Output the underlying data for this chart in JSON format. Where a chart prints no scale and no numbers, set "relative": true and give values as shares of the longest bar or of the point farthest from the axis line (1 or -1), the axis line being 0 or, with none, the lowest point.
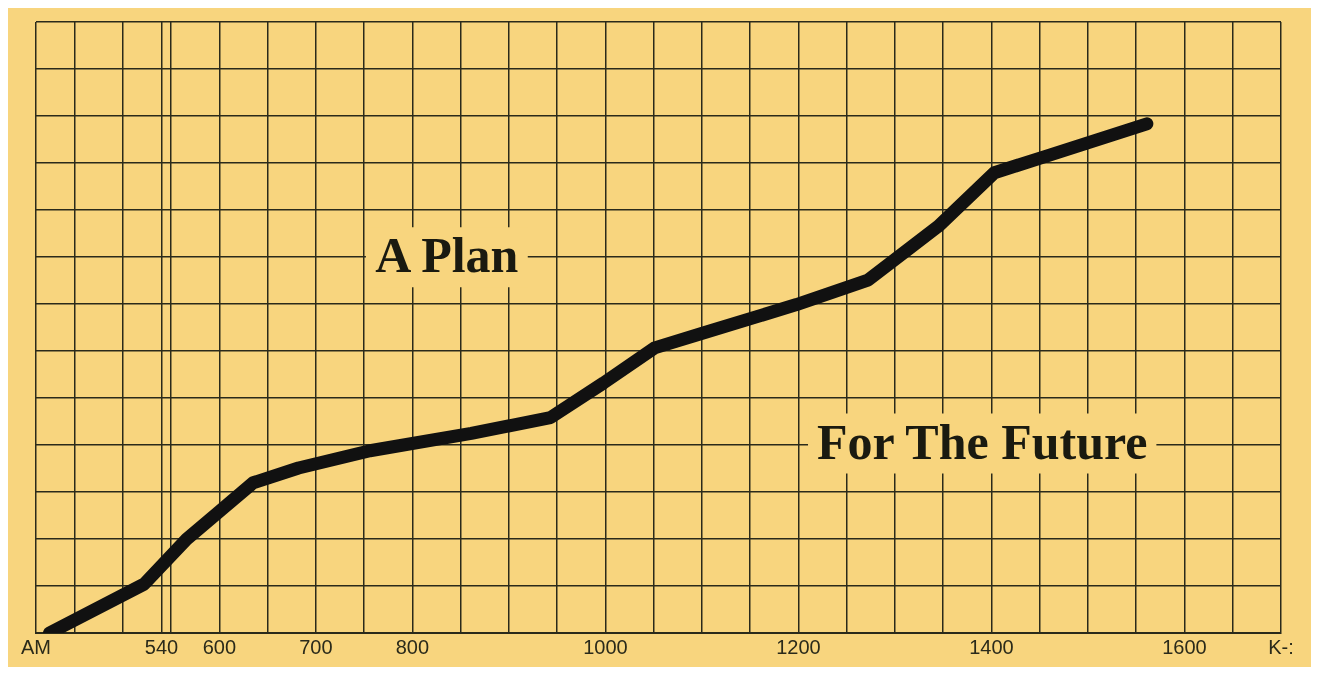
{
  "chart_data": {
    "type": "line",
    "relative": true,
    "annotations": [
      "A Plan",
      "For The Future"
    ],
    "x": [
      424,
      522,
      566,
      635,
      682,
      756,
      861,
      943,
      998,
      1051,
      1103,
      1198,
      1272,
      1345,
      1403,
      1461,
      1561
    ],
    "series": [
      {
        "color": "#111111",
        "values": [
          0,
          0.096,
          0.184,
          0.295,
          0.324,
          0.358,
          0.392,
          0.423,
          0.491,
          0.56,
          0.59,
          0.645,
          0.693,
          0.799,
          0.904,
          0.939,
          1.0
        ]
      }
    ],
    "xlim": [
      410,
      1700
    ],
    "xticks": [
      {
        "value": 410,
        "label": "AM"
      },
      {
        "value": 450,
        "label": null
      },
      {
        "value": 500,
        "label": null
      },
      540,
      {
        "value": 550,
        "label": null
      },
      600,
      {
        "value": 650,
        "label": null
      },
      700,
      {
        "value": 750,
        "label": null
      },
      800,
      {
        "value": 850,
        "label": null
      },
      {
        "value": 900,
        "label": null
      },
      {
        "value": 950,
        "label": null
      },
      1000,
      {
        "value": 1050,
        "label": null
      },
      {
        "value": 1100,
        "label": null
      },
      {
        "value": 1150,
        "label": null
      },
      1200,
      {
        "value": 1250,
        "label": null
      },
      {
        "value": 1300,
        "label": null
      },
      {
        "value": 1350,
        "label": null
      },
      1400,
      {
        "value": 1450,
        "label": null
      },
      {
        "value": 1500,
        "label": null
      },
      {
        "value": 1550,
        "label": null
      },
      1600,
      {
        "value": 1650,
        "label": null
      },
      {
        "value": 1700,
        "label": "K-:"
      }
    ],
    "grid": true,
    "marker": "none",
    "line_style": "solid",
    "legend": false
  }
}
